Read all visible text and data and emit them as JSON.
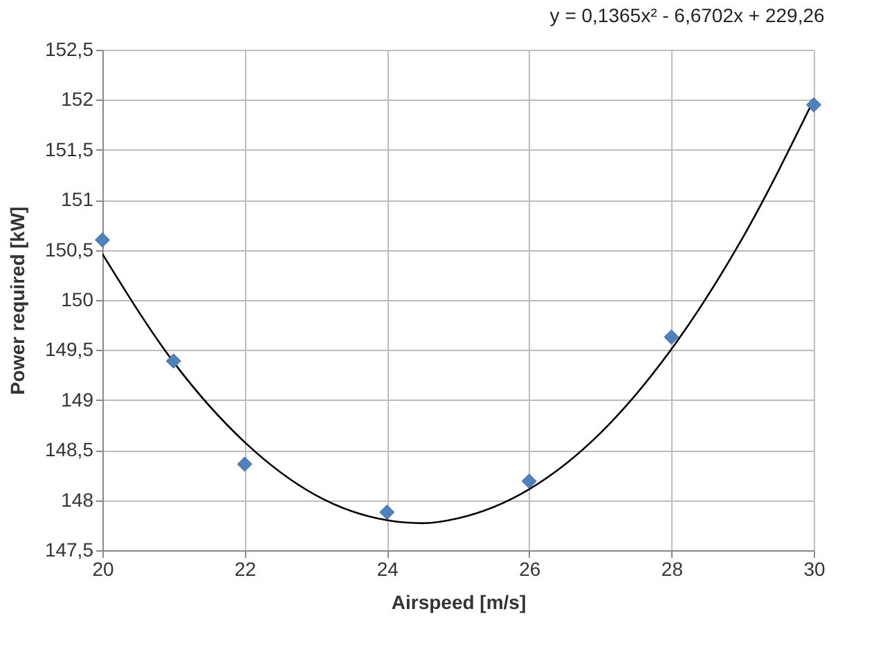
{
  "chart_data": {
    "type": "scatter",
    "xlabel": "Airspeed [m/s]",
    "ylabel": "Power required [kW]",
    "annotations": [
      "y = 0,1365x² - 6,6702x + 229,26"
    ],
    "x": [
      20,
      21,
      22,
      24,
      26,
      28,
      30
    ],
    "xlim": [
      20,
      30
    ],
    "xticks": [
      20,
      22,
      24,
      26,
      28,
      30
    ],
    "ylim": [
      147.5,
      152.5
    ],
    "yticks": [
      {
        "value": 147.5,
        "label": "147,5"
      },
      148,
      {
        "value": 148.5,
        "label": "148,5"
      },
      149,
      {
        "value": 149.5,
        "label": "149,5"
      },
      150,
      {
        "value": 150.5,
        "label": "150,5"
      },
      151,
      {
        "value": 151.5,
        "label": "151,5"
      },
      152,
      {
        "value": 152.5,
        "label": "152,5"
      }
    ],
    "grid": true,
    "marker": "diamond",
    "series": [
      {
        "type": "line",
        "marker": "none",
        "color": "#000000",
        "x": [
          20,
          21,
          22,
          23,
          24,
          24.5,
          25,
          26,
          27,
          28,
          29,
          30
        ],
        "values": [
          150.46,
          149.38,
          148.58,
          148.05,
          147.8,
          147.77,
          147.82,
          148.11,
          148.67,
          149.51,
          150.62,
          152.0
        ]
      },
      {
        "color": "#4f81bd",
        "values": [
          150.6,
          149.39,
          148.36,
          147.88,
          148.19,
          149.63,
          151.95
        ]
      }
    ]
  }
}
